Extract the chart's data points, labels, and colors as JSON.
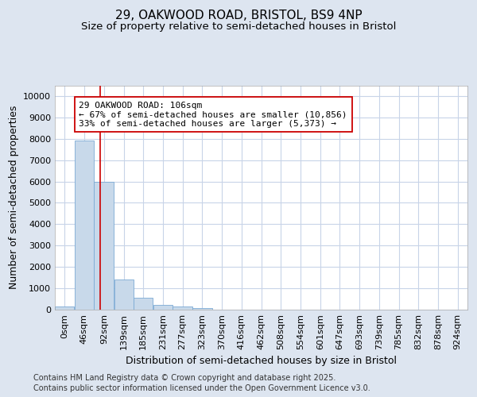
{
  "title_line1": "29, OAKWOOD ROAD, BRISTOL, BS9 4NP",
  "title_line2": "Size of property relative to semi-detached houses in Bristol",
  "xlabel": "Distribution of semi-detached houses by size in Bristol",
  "ylabel": "Number of semi-detached properties",
  "bin_labels": [
    "0sqm",
    "46sqm",
    "92sqm",
    "139sqm",
    "185sqm",
    "231sqm",
    "277sqm",
    "323sqm",
    "370sqm",
    "416sqm",
    "462sqm",
    "508sqm",
    "554sqm",
    "601sqm",
    "647sqm",
    "693sqm",
    "739sqm",
    "785sqm",
    "832sqm",
    "878sqm",
    "924sqm"
  ],
  "bin_edges": [
    0,
    46,
    92,
    139,
    185,
    231,
    277,
    323,
    370,
    416,
    462,
    508,
    554,
    601,
    647,
    693,
    739,
    785,
    832,
    878,
    924,
    970
  ],
  "bar_heights": [
    150,
    7900,
    6000,
    1400,
    550,
    220,
    150,
    80,
    0,
    0,
    0,
    0,
    0,
    0,
    0,
    0,
    0,
    0,
    0,
    0,
    0
  ],
  "bar_color": "#c8d9ea",
  "bar_edge_color": "#7baad4",
  "property_sqm": 106,
  "vline_color": "#cc0000",
  "annotation_text": "29 OAKWOOD ROAD: 106sqm\n← 67% of semi-detached houses are smaller (10,856)\n33% of semi-detached houses are larger (5,373) →",
  "annotation_box_facecolor": "#ffffff",
  "annotation_box_edgecolor": "#cc0000",
  "ylim": [
    0,
    10500
  ],
  "yticks": [
    0,
    1000,
    2000,
    3000,
    4000,
    5000,
    6000,
    7000,
    8000,
    9000,
    10000
  ],
  "figure_background": "#dde5f0",
  "plot_background": "#ffffff",
  "grid_color": "#c8d4e8",
  "footer_line1": "Contains HM Land Registry data © Crown copyright and database right 2025.",
  "footer_line2": "Contains public sector information licensed under the Open Government Licence v3.0.",
  "title_fontsize": 11,
  "subtitle_fontsize": 9.5,
  "axis_label_fontsize": 9,
  "tick_fontsize": 8,
  "annotation_fontsize": 8,
  "footer_fontsize": 7
}
